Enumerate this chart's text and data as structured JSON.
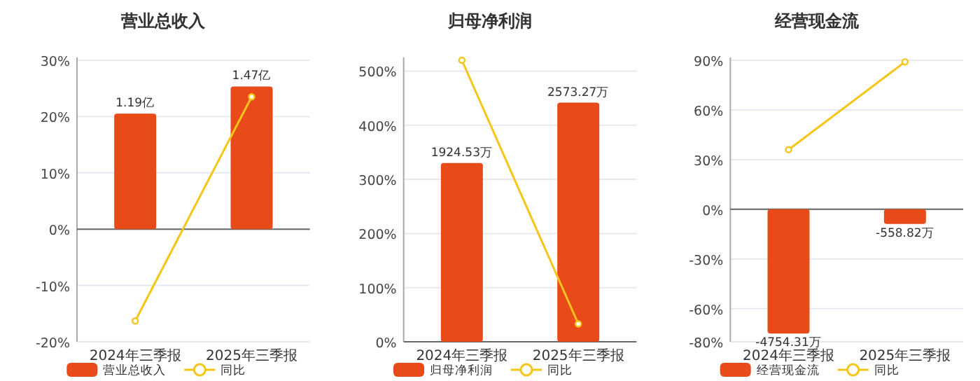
{
  "chart_data": [
    {
      "type": "bar",
      "title": "营业总收入",
      "categories": [
        "2024年三季报",
        "2025年三季报"
      ],
      "series": [
        {
          "name": "营业总收入",
          "axis": "y2",
          "color": "#e84a1a",
          "values": [
            1.19,
            1.47
          ],
          "value_labels": [
            "1.19亿",
            "1.47亿"
          ]
        },
        {
          "name": "同比",
          "type": "line",
          "color": "#f5c518",
          "values": [
            -16.3,
            23.5
          ],
          "marker": "circle"
        }
      ],
      "ylim": [
        -20,
        30
      ],
      "yticks": [
        {
          "value": -20,
          "label": "-20%"
        },
        {
          "value": -10,
          "label": "-10%"
        },
        {
          "value": 0,
          "label": "0%"
        },
        {
          "value": 10,
          "label": "10%"
        },
        {
          "value": 20,
          "label": "20%"
        },
        {
          "value": 30,
          "label": "30%"
        }
      ],
      "y2lim": [
        -1.16,
        1.74
      ],
      "grid": "y",
      "legend": "bottom"
    },
    {
      "type": "bar",
      "title": "归母净利润",
      "categories": [
        "2024年三季报",
        "2025年三季报"
      ],
      "series": [
        {
          "name": "归母净利润",
          "axis": "y2",
          "color": "#e84a1a",
          "values": [
            1924.53,
            2573.27
          ],
          "value_labels": [
            "1924.53万",
            "2573.27万"
          ]
        },
        {
          "name": "同比",
          "type": "line",
          "color": "#f5c518",
          "values": [
            520,
            33
          ],
          "marker": "circle"
        }
      ],
      "ylim": [
        0,
        520
      ],
      "yticks": [
        {
          "value": 0,
          "label": "0%"
        },
        {
          "value": 100,
          "label": "100%"
        },
        {
          "value": 200,
          "label": "200%"
        },
        {
          "value": 300,
          "label": "300%"
        },
        {
          "value": 400,
          "label": "400%"
        },
        {
          "value": 500,
          "label": "500%"
        }
      ],
      "y2lim": [
        0,
        3030
      ],
      "grid": "y",
      "legend": "bottom"
    },
    {
      "type": "bar",
      "title": "经营现金流",
      "categories": [
        "2024年三季报",
        "2025年三季报"
      ],
      "series": [
        {
          "name": "经营现金流",
          "axis": "y2",
          "color": "#e84a1a",
          "values": [
            -4754.31,
            -558.82
          ],
          "value_labels": [
            "-4754.31万",
            "-558.82万"
          ]
        },
        {
          "name": "同比",
          "type": "line",
          "color": "#f5c518",
          "values": [
            36,
            89
          ],
          "marker": "circle"
        }
      ],
      "ylim": [
        -80,
        90
      ],
      "yticks": [
        {
          "value": -80,
          "label": "-80%"
        },
        {
          "value": -60,
          "label": "-60%"
        },
        {
          "value": -30,
          "label": "-30%"
        },
        {
          "value": 0,
          "label": "0%"
        },
        {
          "value": 30,
          "label": "30%"
        },
        {
          "value": 60,
          "label": "60%"
        },
        {
          "value": 90,
          "label": "90%"
        }
      ],
      "y2lim": [
        -5070,
        5705
      ],
      "grid": "y",
      "legend": "bottom"
    }
  ]
}
